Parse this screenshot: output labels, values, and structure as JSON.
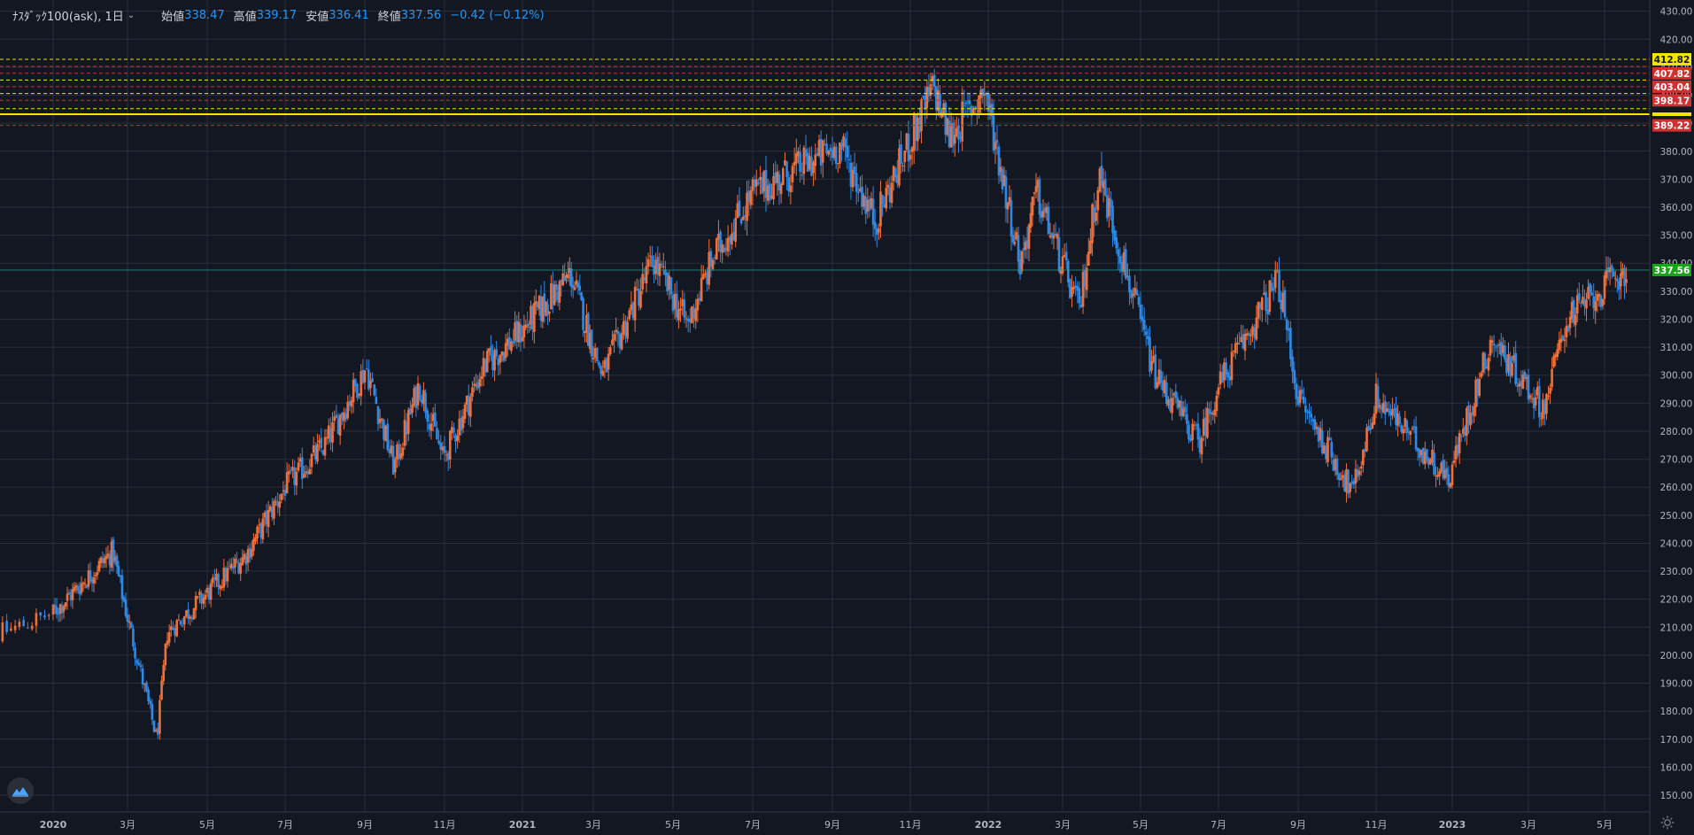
{
  "legend": {
    "symbol": "ﾅｽﾀﾞｯｸ100(ask), 1日",
    "open_label": "始値",
    "open": "338.47",
    "high_label": "高値",
    "high": "339.17",
    "low_label": "安値",
    "low": "336.41",
    "close_label": "終値",
    "close": "337.56",
    "change": "−0.42 (−0.12%)"
  },
  "colors": {
    "background": "#131722",
    "grid": "#2a2e39",
    "up": "#f0703a",
    "down": "#2e8ae6",
    "price_line": "#26a69a",
    "level_red": "#d32f2f",
    "level_yellow": "#f2e600"
  },
  "icons": {
    "logo": "tradingview-logo-icon",
    "settings": "gear-icon"
  },
  "chart_data": {
    "type": "candlestick",
    "title": "ﾅｽﾀﾞｯｸ100(ask), 1日",
    "ylim": [
      144,
      434
    ],
    "y_ticks": [
      "150.00",
      "160.00",
      "170.00",
      "180.00",
      "190.00",
      "200.00",
      "210.00",
      "220.00",
      "230.00",
      "240.00",
      "250.00",
      "260.00",
      "270.00",
      "280.00",
      "290.00",
      "300.00",
      "310.00",
      "320.00",
      "330.00",
      "340.00",
      "350.00",
      "360.00",
      "370.00",
      "380.00",
      "390.00",
      "400.00",
      "410.00",
      "420.00",
      "430.00"
    ],
    "x_labels": [
      "2020",
      "3月",
      "5月",
      "7月",
      "9月",
      "11月",
      "2021",
      "3月",
      "5月",
      "7月",
      "9月",
      "11月",
      "2022",
      "3月",
      "5月",
      "7月",
      "9月",
      "11月",
      "2023",
      "3月",
      "5月"
    ],
    "x_label_dates": [
      "2020-01",
      "2020-03",
      "2020-05",
      "2020-07",
      "2020-09",
      "2020-11",
      "2021-01",
      "2021-03",
      "2021-05",
      "2021-07",
      "2021-09",
      "2021-11",
      "2022-01",
      "2022-03",
      "2022-05",
      "2022-07",
      "2022-09",
      "2022-11",
      "2023-01",
      "2023-03",
      "2023-05"
    ],
    "price_path": {
      "dates": [
        "2019-12",
        "2020-01",
        "2020-02-19",
        "2020-03-23",
        "2020-04",
        "2020-06",
        "2020-07",
        "2020-08",
        "2020-09-02",
        "2020-09-23",
        "2020-10-12",
        "2020-10-30",
        "2020-12",
        "2021-01",
        "2021-02-12",
        "2021-03-08",
        "2021-04-16",
        "2021-05-12",
        "2021-06",
        "2021-07",
        "2021-09-07",
        "2021-10-04",
        "2021-11-19",
        "2021-12-01",
        "2021-12-28",
        "2022-01-27",
        "2022-02-10",
        "2022-03-14",
        "2022-03-29",
        "2022-05-12",
        "2022-06-16",
        "2022-07",
        "2022-08-16",
        "2022-09",
        "2022-10-13",
        "2022-11",
        "2022-12-28",
        "2023-02-02",
        "2023-03-13",
        "2023-04",
        "2023-05-19"
      ],
      "closes": [
        203,
        215,
        237,
        170,
        208,
        236,
        260,
        275,
        303,
        267,
        297,
        270,
        303,
        316,
        336,
        300,
        341,
        318,
        342,
        365,
        382,
        355,
        403,
        385,
        402,
        340,
        365,
        323,
        372,
        300,
        276,
        296,
        334,
        292,
        258,
        292,
        263,
        313,
        288,
        320,
        338
      ]
    },
    "horizontal_levels": [
      {
        "value": 412.82,
        "label": "412.82",
        "color": "yellow",
        "labeled": true
      },
      {
        "value": 410.3,
        "color": "red"
      },
      {
        "value": 407.82,
        "label": "407.82",
        "color": "red",
        "labeled": true
      },
      {
        "value": 405.4,
        "color": "yellow"
      },
      {
        "value": 403.04,
        "label": "403.04",
        "color": "red",
        "labeled": true
      },
      {
        "value": 400.6,
        "color": "yellow"
      },
      {
        "value": 398.17,
        "label": "398.17",
        "color": "red",
        "labeled": true
      },
      {
        "value": 395.2,
        "color": "yellow"
      },
      {
        "value": 393.2,
        "color": "yellow",
        "solid": true
      },
      {
        "value": 389.22,
        "label": "389.22",
        "color": "red",
        "labeled": true
      }
    ],
    "last_price": {
      "value": 337.56,
      "label": "337.56"
    },
    "grid": true
  }
}
